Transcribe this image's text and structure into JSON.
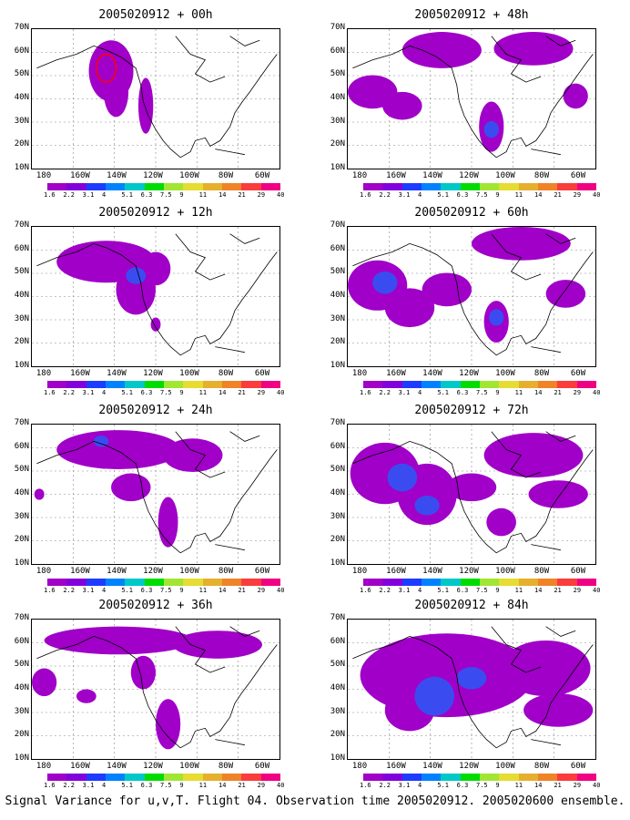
{
  "panels": [
    {
      "title": "2005020912 + 00h",
      "blobs": [
        [
          0.32,
          0.3,
          0.09,
          0.22
        ],
        [
          0.34,
          0.45,
          0.05,
          0.18
        ],
        [
          0.46,
          0.55,
          0.03,
          0.2
        ]
      ],
      "strong": [],
      "contour": true
    },
    {
      "title": "2005020912 + 48h",
      "blobs": [
        [
          0.1,
          0.45,
          0.1,
          0.12
        ],
        [
          0.22,
          0.55,
          0.08,
          0.1
        ],
        [
          0.38,
          0.15,
          0.16,
          0.13
        ],
        [
          0.75,
          0.14,
          0.16,
          0.12
        ],
        [
          0.58,
          0.7,
          0.05,
          0.18
        ],
        [
          0.92,
          0.48,
          0.05,
          0.09
        ]
      ],
      "strong": [
        [
          0.58,
          0.72,
          0.03,
          0.06
        ]
      ],
      "contour": false
    },
    {
      "title": "2005020912 + 12h",
      "blobs": [
        [
          0.3,
          0.25,
          0.2,
          0.15
        ],
        [
          0.42,
          0.45,
          0.08,
          0.18
        ],
        [
          0.5,
          0.3,
          0.06,
          0.12
        ],
        [
          0.5,
          0.7,
          0.02,
          0.05
        ]
      ],
      "strong": [
        [
          0.42,
          0.35,
          0.04,
          0.06
        ]
      ],
      "contour": false
    },
    {
      "title": "2005020912 + 60h",
      "blobs": [
        [
          0.12,
          0.42,
          0.12,
          0.18
        ],
        [
          0.25,
          0.58,
          0.1,
          0.14
        ],
        [
          0.4,
          0.45,
          0.1,
          0.12
        ],
        [
          0.7,
          0.12,
          0.2,
          0.12
        ],
        [
          0.6,
          0.68,
          0.05,
          0.15
        ],
        [
          0.88,
          0.48,
          0.08,
          0.1
        ]
      ],
      "strong": [
        [
          0.15,
          0.4,
          0.05,
          0.08
        ],
        [
          0.6,
          0.65,
          0.03,
          0.06
        ]
      ],
      "contour": false
    },
    {
      "title": "2005020912 + 24h",
      "blobs": [
        [
          0.35,
          0.18,
          0.25,
          0.14
        ],
        [
          0.65,
          0.22,
          0.12,
          0.12
        ],
        [
          0.4,
          0.45,
          0.08,
          0.1
        ],
        [
          0.55,
          0.7,
          0.04,
          0.18
        ],
        [
          0.03,
          0.5,
          0.02,
          0.04
        ]
      ],
      "strong": [
        [
          0.28,
          0.12,
          0.03,
          0.04
        ]
      ],
      "contour": false
    },
    {
      "title": "2005020912 + 72h",
      "blobs": [
        [
          0.15,
          0.35,
          0.14,
          0.22
        ],
        [
          0.32,
          0.5,
          0.12,
          0.22
        ],
        [
          0.5,
          0.45,
          0.1,
          0.1
        ],
        [
          0.75,
          0.22,
          0.2,
          0.16
        ],
        [
          0.85,
          0.5,
          0.12,
          0.1
        ],
        [
          0.62,
          0.7,
          0.06,
          0.1
        ]
      ],
      "strong": [
        [
          0.22,
          0.38,
          0.06,
          0.1
        ],
        [
          0.32,
          0.58,
          0.05,
          0.07
        ]
      ],
      "contour": false
    },
    {
      "title": "2005020912 + 36h",
      "blobs": [
        [
          0.35,
          0.15,
          0.3,
          0.1
        ],
        [
          0.75,
          0.18,
          0.18,
          0.1
        ],
        [
          0.05,
          0.45,
          0.05,
          0.1
        ],
        [
          0.22,
          0.55,
          0.04,
          0.05
        ],
        [
          0.45,
          0.38,
          0.05,
          0.12
        ],
        [
          0.55,
          0.75,
          0.05,
          0.18
        ]
      ],
      "strong": [],
      "contour": false
    },
    {
      "title": "2005020912 + 84h",
      "blobs": [
        [
          0.4,
          0.4,
          0.35,
          0.3
        ],
        [
          0.8,
          0.35,
          0.18,
          0.2
        ],
        [
          0.25,
          0.65,
          0.1,
          0.15
        ],
        [
          0.85,
          0.65,
          0.14,
          0.12
        ]
      ],
      "strong": [
        [
          0.35,
          0.55,
          0.08,
          0.14
        ],
        [
          0.5,
          0.42,
          0.06,
          0.08
        ]
      ],
      "contour": false
    }
  ],
  "y_labels": [
    "70N",
    "60N",
    "50N",
    "40N",
    "30N",
    "20N",
    "10N"
  ],
  "x_labels": [
    "180",
    "160W",
    "140W",
    "120W",
    "100W",
    "80W",
    "60W"
  ],
  "colorbar": {
    "labels": [
      "1.6",
      "2.2",
      "3.1",
      "4",
      "5.1",
      "6.3",
      "7.5",
      "9",
      "11",
      "14",
      "21",
      "29",
      "40"
    ],
    "colors": [
      "#a000c8",
      "#8200dc",
      "#1e3cff",
      "#0082ff",
      "#00c8c8",
      "#00dc00",
      "#a0e632",
      "#e6dc32",
      "#e6af2d",
      "#f08228",
      "#fa3c3c",
      "#f00082"
    ]
  },
  "colors": {
    "weak": "#a000c8",
    "medium": "#7a2fe0",
    "strong": "#3a4cf0",
    "contour": "#ff0000",
    "coast": "#000000"
  },
  "footer": "Signal Variance for u,v,T. Flight 04. Observation time 2005020912. 2005020600 ensemble."
}
